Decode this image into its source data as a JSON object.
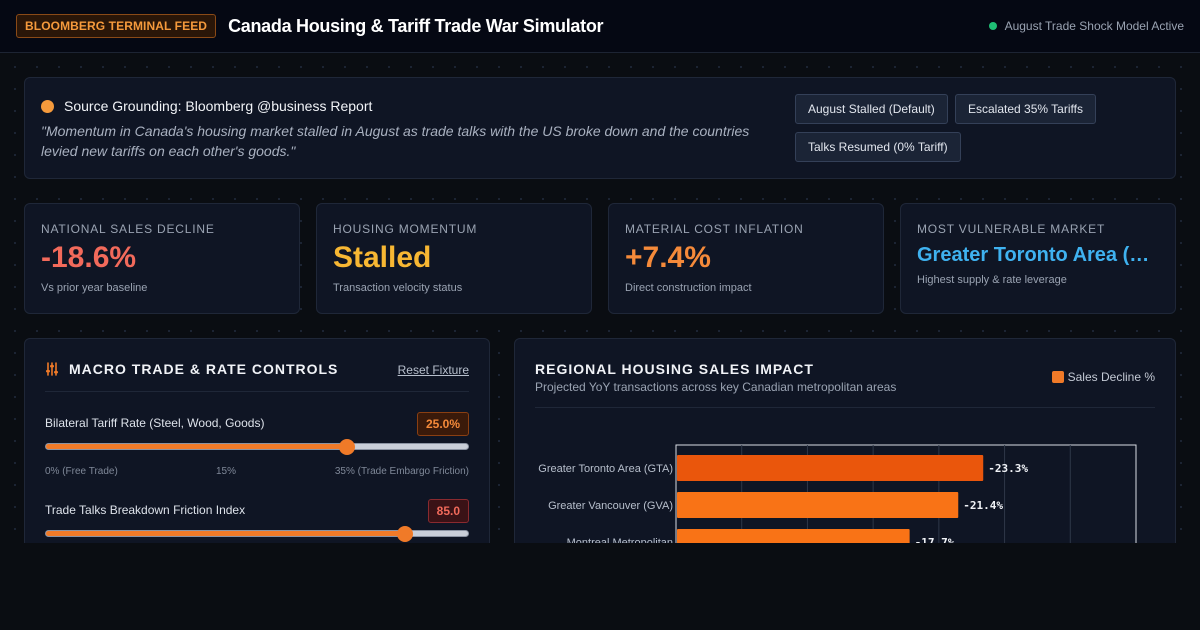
{
  "header": {
    "badge": "BLOOMBERG TERMINAL FEED",
    "title": "Canada Housing & Tariff Trade War Simulator",
    "status": "August Trade Shock Model Active"
  },
  "source": {
    "heading": "Source Grounding: Bloomberg @business Report",
    "quote": "\"Momentum in Canada's housing market stalled in August as trade talks with the US broke down and the countries levied new tariffs on each other's goods.\"",
    "scenarios": [
      "August Stalled (Default)",
      "Escalated 35% Tariffs",
      "Talks Resumed (0% Tariff)"
    ]
  },
  "kpis": [
    {
      "label": "National Sales Decline",
      "value": "-18.6%",
      "sub": "Vs prior year baseline",
      "color": "#f26a5b"
    },
    {
      "label": "Housing Momentum",
      "value": "Stalled",
      "sub": "Transaction velocity status",
      "color": "#f7b733"
    },
    {
      "label": "Material Cost Inflation",
      "value": "+7.4%",
      "sub": "Direct construction impact",
      "color": "#f58a3a"
    },
    {
      "label": "Most Vulnerable Market",
      "value": "Greater Toronto Area (GTA)",
      "sub": "Highest supply & rate leverage",
      "color": "#3fb2f0"
    }
  ],
  "controls": {
    "title": "MACRO TRADE & RATE CONTROLS",
    "icon": "sliders-icon",
    "reset": "Reset Fixture",
    "sliders": [
      {
        "label": "Bilateral Tariff Rate (Steel, Wood, Goods)",
        "value": "25.0%",
        "fraction": 0.714,
        "ticks": [
          "0% (Free Trade)",
          "15%",
          "35% (Trade Embargo Friction)"
        ],
        "badge_color": "#f58a3a"
      },
      {
        "label": "Trade Talks Breakdown Friction Index",
        "value": "85.0",
        "fraction": 0.85,
        "ticks": [],
        "badge_color": "#f26a5b"
      }
    ]
  },
  "chart": {
    "title": "REGIONAL HOUSING SALES IMPACT",
    "subtitle": "Projected YoY transactions across key Canadian metropolitan areas",
    "legend": "Sales Decline %"
  },
  "chart_data": {
    "type": "bar",
    "orientation": "horizontal",
    "categories": [
      "Greater Toronto Area (GTA)",
      "Greater Vancouver (GVA)",
      "Montreal Metropolitan"
    ],
    "series": [
      {
        "name": "Sales Decline %",
        "values": [
          -23.3,
          -21.4,
          -17.7
        ]
      }
    ],
    "value_labels": [
      "-23.3%",
      "-21.4%",
      "-17.7%"
    ],
    "xlim": [
      0,
      35
    ],
    "grid": true,
    "colors": [
      "#ea560c",
      "#f97316",
      "#f97316"
    ]
  }
}
